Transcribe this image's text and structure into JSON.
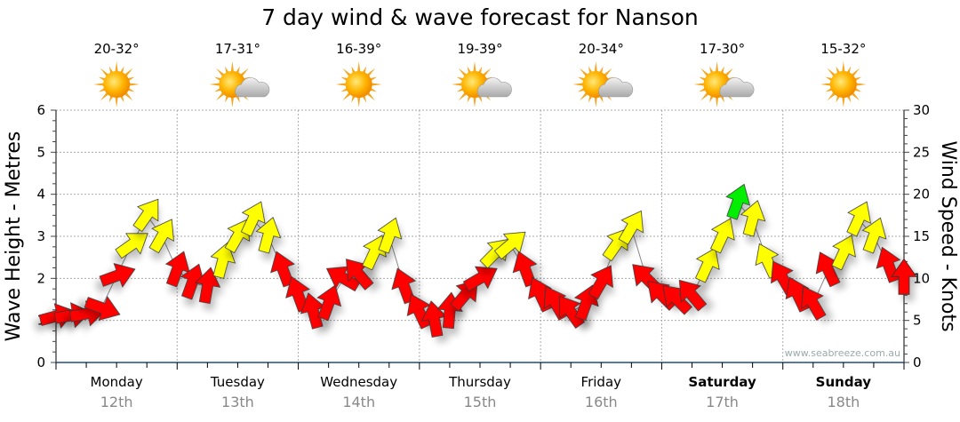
{
  "chart_data": {
    "type": "scatter",
    "title": "7 day wind & wave forecast for Nanson",
    "ylabel_left": "Wave Height - Metres",
    "ylabel_right": "Wind Speed - Knots",
    "ylim_left": [
      0,
      6
    ],
    "ylim_right": [
      0,
      30
    ],
    "yticks_left": [
      "0",
      "1",
      "2",
      "3",
      "4",
      "5",
      "6"
    ],
    "yticks_right": [
      "0",
      "5",
      "10",
      "15",
      "20",
      "25",
      "30"
    ],
    "grid": true,
    "watermark": "www.seabreeze.com.au",
    "colors": {
      "r": "#ff0000",
      "y": "#ffff00",
      "g": "#00ee00"
    },
    "days": [
      {
        "day": "Monday",
        "date": "12th",
        "temp": "20-32°",
        "icon": "sun",
        "bold": false
      },
      {
        "day": "Tuesday",
        "date": "13th",
        "temp": "17-31°",
        "icon": "sun-cloud",
        "bold": false
      },
      {
        "day": "Wednesday",
        "date": "14th",
        "temp": "16-39°",
        "icon": "sun",
        "bold": false
      },
      {
        "day": "Thursday",
        "date": "15th",
        "temp": "19-39°",
        "icon": "sun-cloud",
        "bold": false
      },
      {
        "day": "Friday",
        "date": "16th",
        "temp": "20-34°",
        "icon": "sun-cloud",
        "bold": false
      },
      {
        "day": "Saturday",
        "date": "17th",
        "temp": "17-30°",
        "icon": "sun-cloud",
        "bold": true
      },
      {
        "day": "Sunday",
        "date": "18th",
        "temp": "15-32°",
        "icon": "sun",
        "bold": true
      }
    ],
    "hours_step": 3,
    "wind_knots": [
      5.5,
      5.6,
      5.8,
      6.5,
      10.3,
      14,
      17.5,
      15,
      11,
      9.5,
      9,
      12,
      15,
      17,
      15,
      11,
      8,
      6,
      7,
      10,
      10.5,
      13,
      15,
      9,
      6,
      5,
      6,
      8,
      10,
      13,
      14,
      11,
      8,
      7,
      6,
      7,
      9.5,
      14,
      16,
      10,
      8,
      7.5,
      8,
      11.5,
      15,
      19,
      17,
      12,
      10,
      8,
      7,
      11,
      13,
      17,
      15,
      11.5,
      10
    ],
    "wind_dir_deg": [
      75,
      80,
      80,
      110,
      70,
      55,
      35,
      30,
      20,
      20,
      10,
      15,
      30,
      25,
      15,
      -20,
      -20,
      -15,
      20,
      -60,
      -40,
      25,
      20,
      -20,
      -25,
      -10,
      5,
      40,
      60,
      45,
      50,
      -20,
      -25,
      -30,
      -35,
      20,
      30,
      35,
      30,
      -45,
      -45,
      -45,
      -40,
      25,
      25,
      20,
      15,
      -25,
      -30,
      -25,
      -30,
      -25,
      25,
      25,
      20,
      -20,
      0
    ],
    "wind_color": [
      "r",
      "r",
      "r",
      "r",
      "r",
      "y",
      "y",
      "y",
      "r",
      "r",
      "r",
      "y",
      "y",
      "y",
      "y",
      "r",
      "r",
      "r",
      "r",
      "r",
      "r",
      "y",
      "y",
      "r",
      "r",
      "r",
      "r",
      "r",
      "r",
      "y",
      "y",
      "r",
      "r",
      "r",
      "r",
      "r",
      "r",
      "y",
      "y",
      "r",
      "r",
      "r",
      "r",
      "y",
      "y",
      "g",
      "y",
      "y",
      "r",
      "r",
      "r",
      "r",
      "y",
      "y",
      "y",
      "r",
      "r"
    ]
  }
}
